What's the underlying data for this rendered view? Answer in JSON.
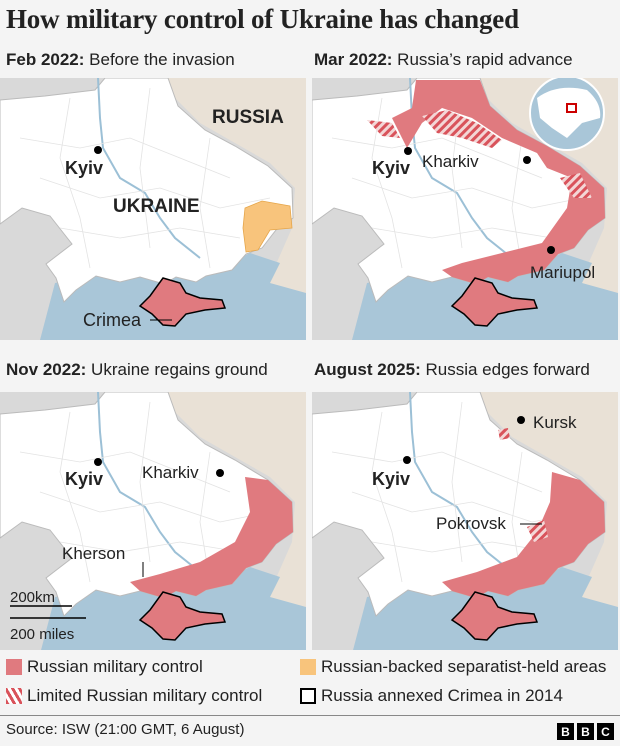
{
  "title": "How military control of Ukraine has changed",
  "colors": {
    "russian_control": "#e07a7f",
    "separatist": "#f8c47c",
    "crimea_border": "#000000",
    "sea": "#a9c6d8",
    "russia_land": "#e9e1d6",
    "other_land": "#d9d9d9",
    "ukraine_land": "#ffffff"
  },
  "panels": [
    {
      "date": "Feb 2022:",
      "caption": " Before the invasion",
      "labels": {
        "kyiv": "Kyiv",
        "russia": "RUSSIA",
        "ukraine": "UKRAINE",
        "crimea": "Crimea"
      }
    },
    {
      "date": "Mar 2022:",
      "caption": " Russia’s rapid advance",
      "labels": {
        "kyiv": "Kyiv",
        "kharkiv": "Kharkiv",
        "mariupol": "Mariupol"
      },
      "inset": "globe-locator"
    },
    {
      "date": "Nov 2022:",
      "caption": " Ukraine regains ground",
      "labels": {
        "kyiv": "Kyiv",
        "kharkiv": "Kharkiv",
        "kherson": "Kherson"
      },
      "scale": {
        "km": "200km",
        "miles": "200 miles"
      }
    },
    {
      "date": "August 2025:",
      "caption": " Russia edges forward",
      "labels": {
        "kyiv": "Kyiv",
        "kursk": "Kursk",
        "pokrovsk": "Pokrovsk"
      }
    }
  ],
  "legend": [
    {
      "label": "Russian military control",
      "type": "solid-red"
    },
    {
      "label": "Russian-backed separatist-held areas",
      "type": "solid-orange"
    },
    {
      "label": "Limited Russian military control",
      "type": "hatched-red"
    },
    {
      "label": "Russia annexed Crimea in 2014",
      "type": "outline-black"
    }
  ],
  "source": "Source: ISW (21:00 GMT, 6 August)",
  "logo": [
    "B",
    "B",
    "C"
  ]
}
